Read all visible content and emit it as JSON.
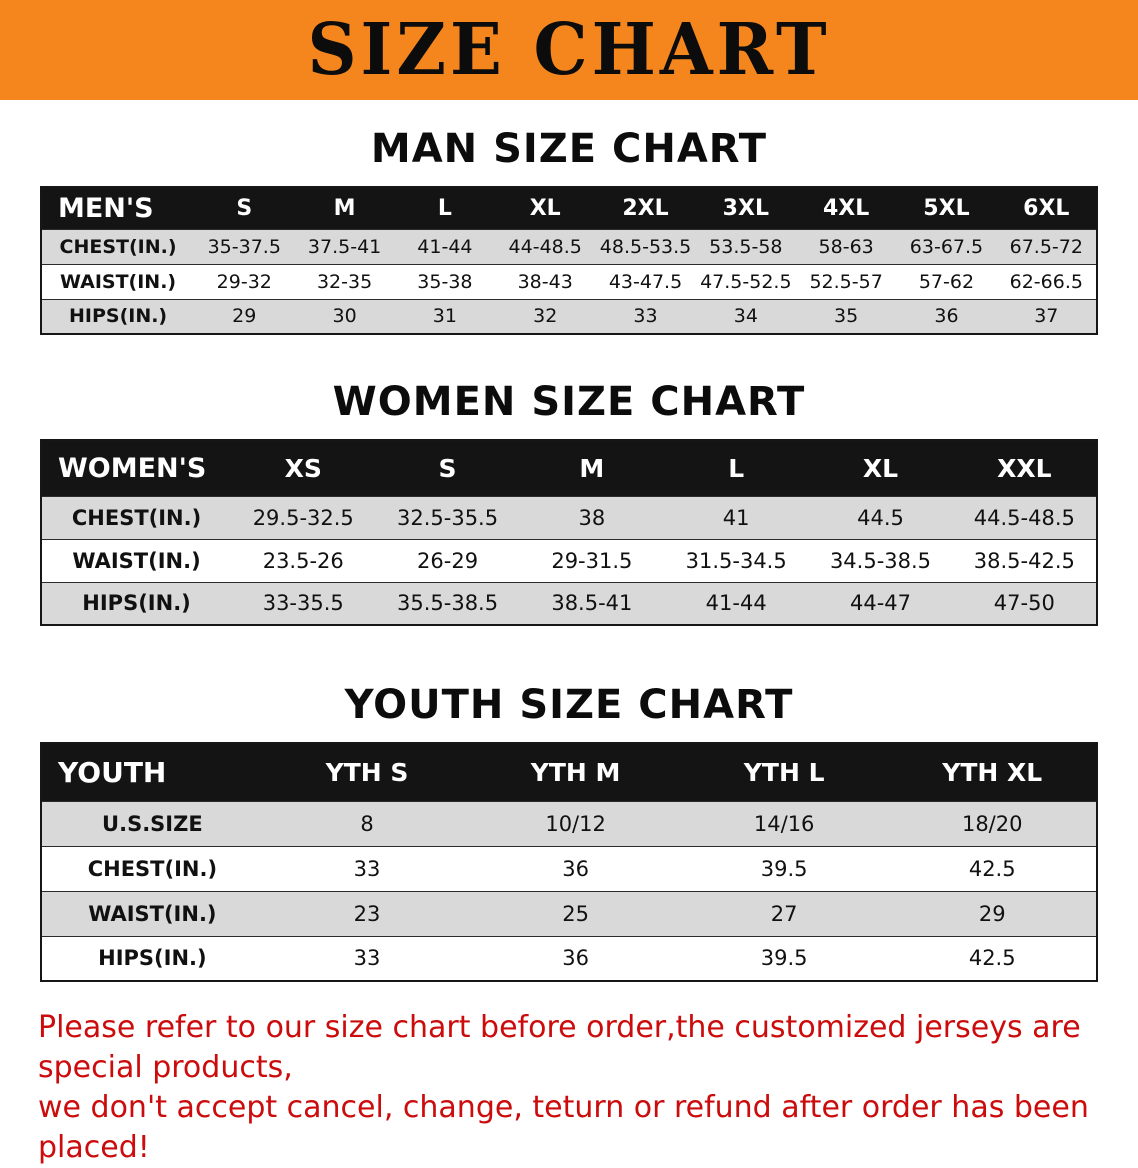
{
  "banner": {
    "title": "SIZE CHART",
    "bg_color": "#f5861d",
    "text_color": "#0c0c0c"
  },
  "colors": {
    "table_header_bg": "#141414",
    "row_shade": "#d9d9d9",
    "footer_text": "#cc0c0c"
  },
  "sections": [
    {
      "title": "MAN SIZE CHART",
      "header": [
        "MEN'S",
        "S",
        "M",
        "L",
        "XL",
        "2XL",
        "3XL",
        "4XL",
        "5XL",
        "6XL"
      ],
      "rows": [
        {
          "label": "CHEST(IN.)",
          "values": [
            "35-37.5",
            "37.5-41",
            "41-44",
            "44-48.5",
            "48.5-53.5",
            "53.5-58",
            "58-63",
            "63-67.5",
            "67.5-72"
          ]
        },
        {
          "label": "WAIST(IN.)",
          "values": [
            "29-32",
            "32-35",
            "35-38",
            "38-43",
            "43-47.5",
            "47.5-52.5",
            "52.5-57",
            "57-62",
            "62-66.5"
          ]
        },
        {
          "label": "HIPS(IN.)",
          "values": [
            "29",
            "30",
            "31",
            "32",
            "33",
            "34",
            "35",
            "36",
            "37"
          ]
        }
      ]
    },
    {
      "title": "WOMEN SIZE CHART",
      "header": [
        "WOMEN'S",
        "XS",
        "S",
        "M",
        "L",
        "XL",
        "XXL"
      ],
      "rows": [
        {
          "label": "CHEST(IN.)",
          "values": [
            "29.5-32.5",
            "32.5-35.5",
            "38",
            "41",
            "44.5",
            "44.5-48.5"
          ]
        },
        {
          "label": "WAIST(IN.)",
          "values": [
            "23.5-26",
            "26-29",
            "29-31.5",
            "31.5-34.5",
            "34.5-38.5",
            "38.5-42.5"
          ]
        },
        {
          "label": "HIPS(IN.)",
          "values": [
            "33-35.5",
            "35.5-38.5",
            "38.5-41",
            "41-44",
            "44-47",
            "47-50"
          ]
        }
      ]
    },
    {
      "title": "YOUTH SIZE CHART",
      "header": [
        "YOUTH",
        "YTH S",
        "YTH M",
        "YTH L",
        "YTH XL"
      ],
      "rows": [
        {
          "label": "U.S.SIZE",
          "values": [
            "8",
            "10/12",
            "14/16",
            "18/20"
          ]
        },
        {
          "label": "CHEST(IN.)",
          "values": [
            "33",
            "36",
            "39.5",
            "42.5"
          ]
        },
        {
          "label": "WAIST(IN.)",
          "values": [
            "23",
            "25",
            "27",
            "29"
          ]
        },
        {
          "label": "HIPS(IN.)",
          "values": [
            "33",
            "36",
            "39.5",
            "42.5"
          ]
        }
      ]
    }
  ],
  "footer": {
    "line1": "Please refer to our size chart before order,the customized jerseys are special products,",
    "line2": "we don't accept cancel, change, teturn or refund after order has been placed!"
  }
}
